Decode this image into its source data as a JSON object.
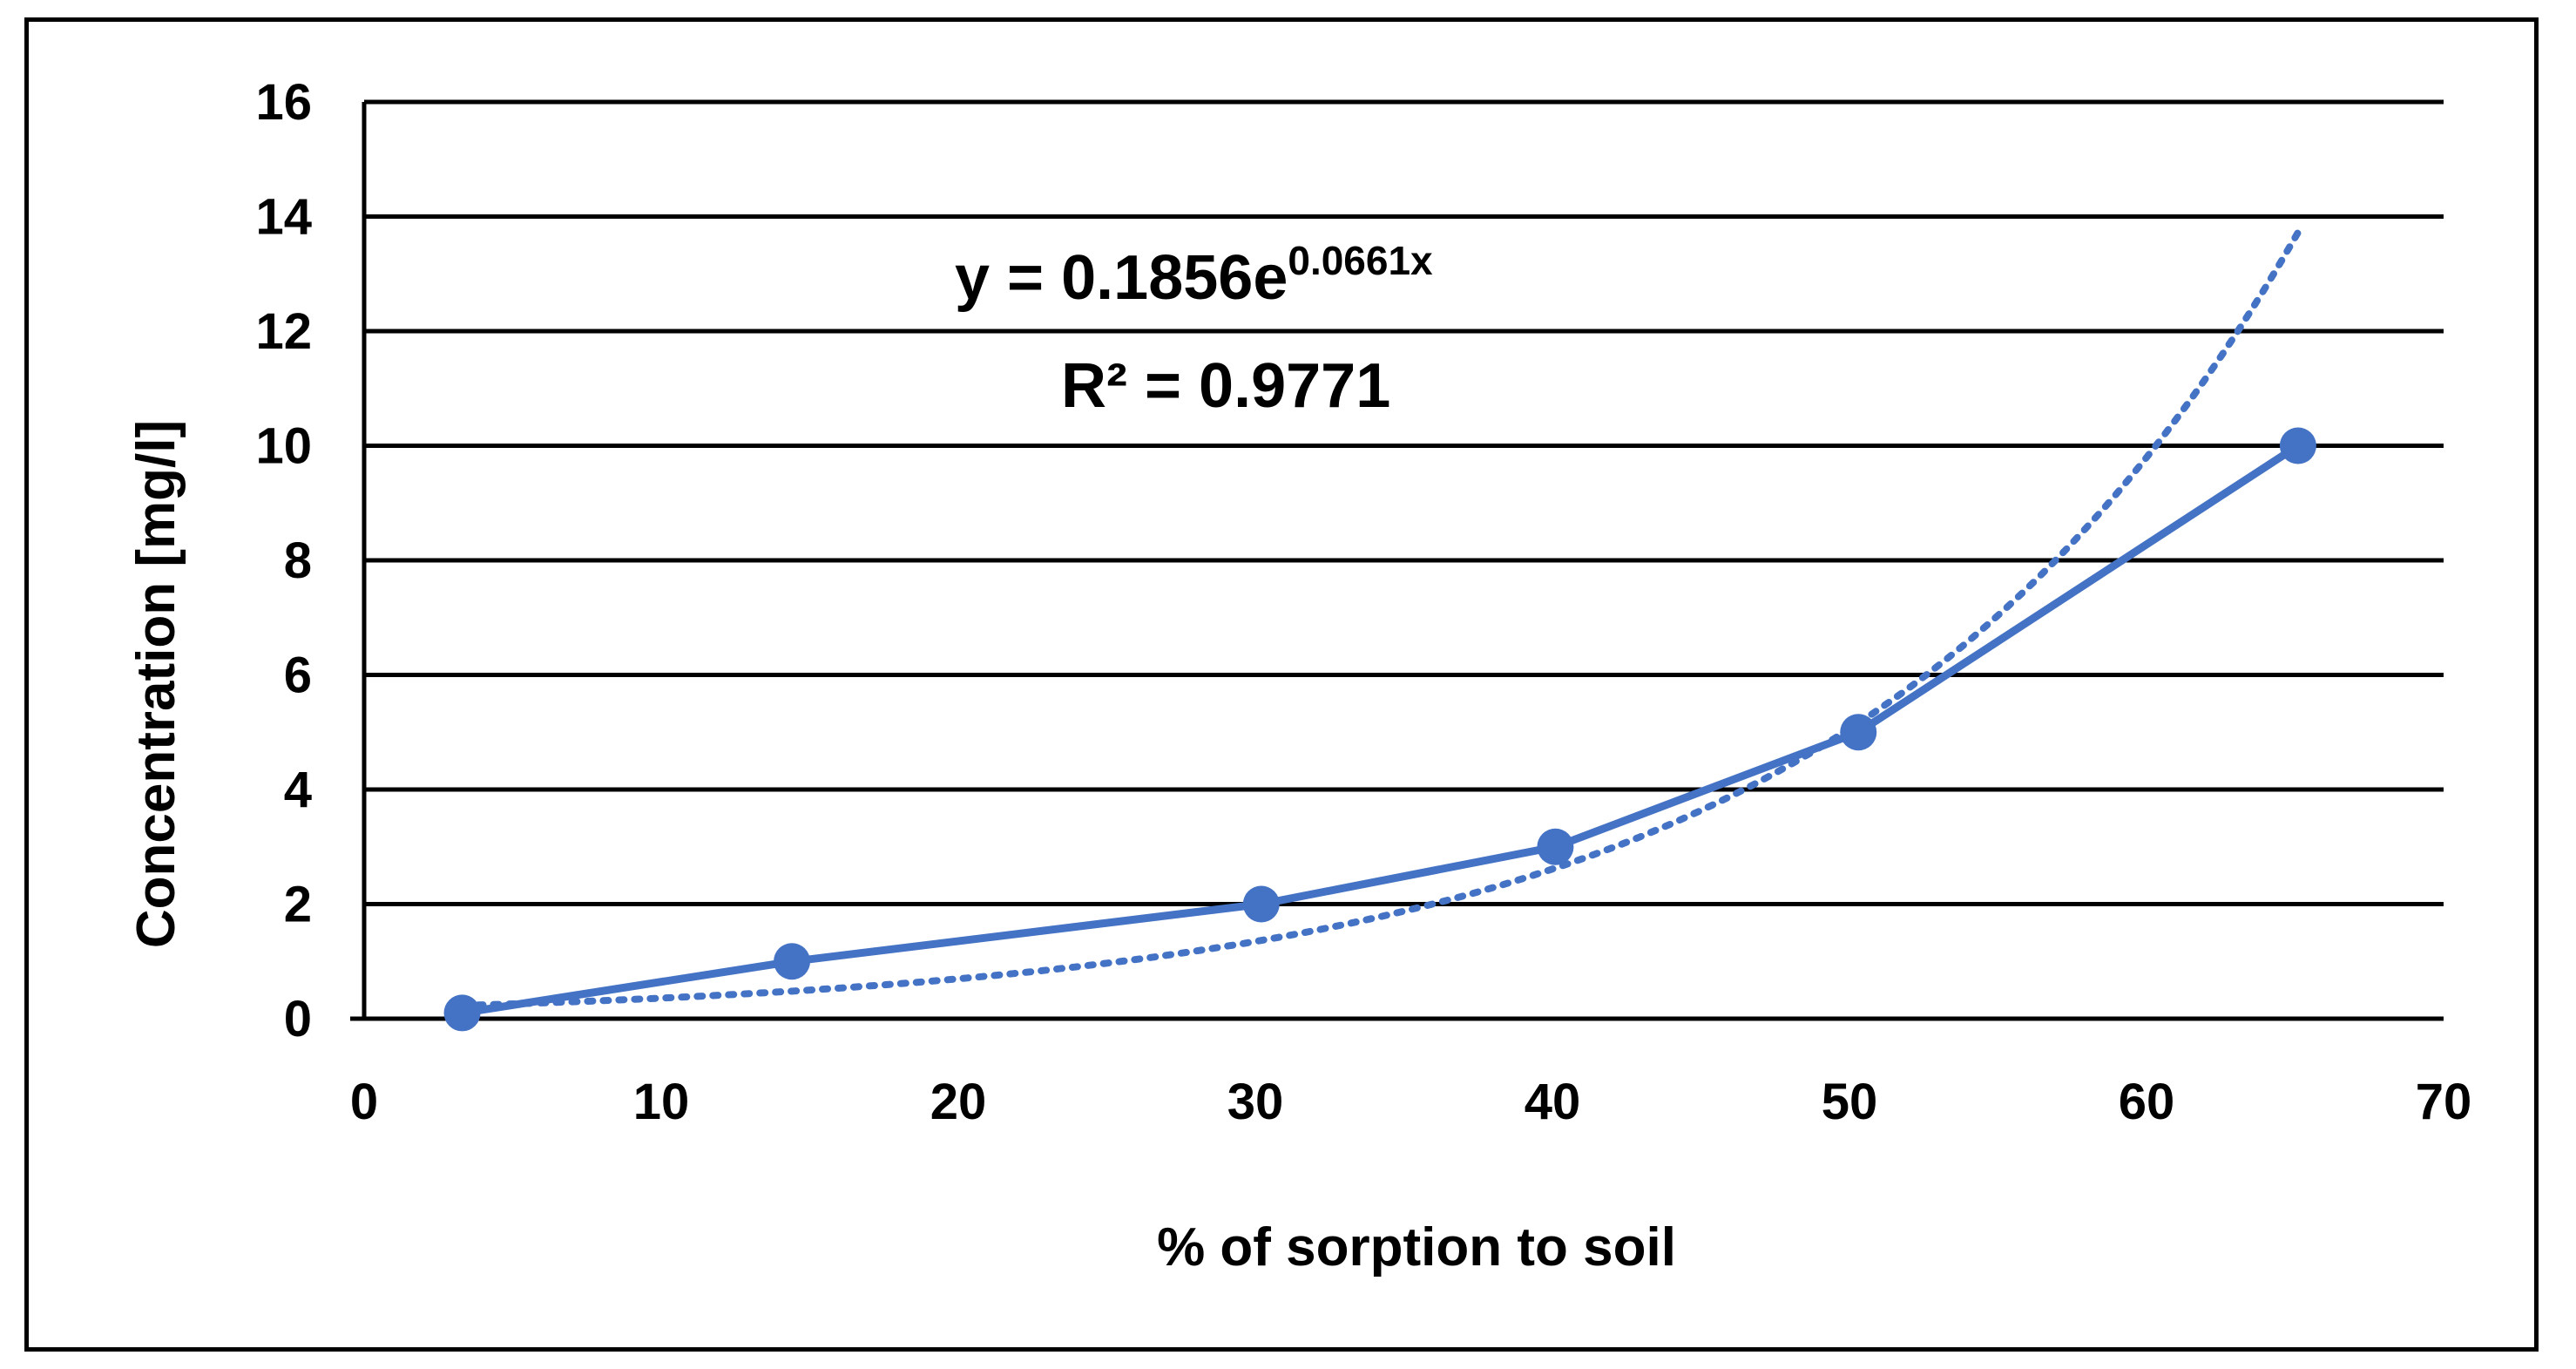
{
  "chart_data": {
    "type": "line",
    "title": "",
    "xlabel": "% of sorption to soil",
    "ylabel": "Concentration [mg/l]",
    "xlim": [
      0,
      70
    ],
    "ylim": [
      0,
      16
    ],
    "x_ticks": [
      0,
      10,
      20,
      30,
      40,
      50,
      60,
      70
    ],
    "y_ticks": [
      0,
      2,
      4,
      6,
      8,
      10,
      12,
      14,
      16
    ],
    "grid": "horizontal",
    "series": [
      {
        "x": [
          3.3,
          14.4,
          30.2,
          40.1,
          50.3,
          65.1
        ],
        "y": [
          0.1,
          1,
          2,
          3,
          5,
          10
        ],
        "color": "#4472c4",
        "marker": "circle"
      }
    ],
    "trendline": {
      "type": "exponential",
      "a": 0.1856,
      "b": 0.0661,
      "style": "dotted",
      "color": "#4472c4",
      "x_range": [
        3.3,
        65.1
      ],
      "equation_prefix": "y = 0.1856e",
      "equation_exponent": "0.0661x",
      "r2_label": "R² = 0.9771"
    }
  }
}
